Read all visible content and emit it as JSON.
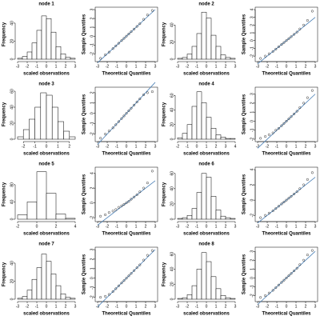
{
  "chart_data": [
    {
      "type": "histogram",
      "title": "node 1",
      "xlabel": "scaled observations",
      "ylabel": "Frequency",
      "bins": [
        -3,
        -2.5,
        -2,
        -1.5,
        -1,
        -0.5,
        0,
        0.5,
        1,
        1.5,
        2,
        2.5,
        3
      ],
      "values": [
        1,
        3,
        8,
        18,
        32,
        48,
        45,
        30,
        14,
        6,
        2,
        1
      ],
      "xlim": [
        -3,
        3
      ],
      "xticks": [
        -3,
        -2,
        -1,
        0,
        1,
        2,
        3
      ],
      "ylim": [
        0,
        55
      ],
      "yticks": [
        0,
        20,
        40
      ]
    },
    {
      "type": "qq",
      "xlabel": "Theoretical Quantiles",
      "ylabel": "Sample Quantiles",
      "x": [
        -2.7,
        -2.2,
        -1.8,
        -1.4,
        -1.1,
        -0.8,
        -0.5,
        -0.25,
        0,
        0.25,
        0.5,
        0.8,
        1.1,
        1.4,
        1.8,
        2.2,
        2.7
      ],
      "values": [
        -2.5,
        -2.1,
        -1.8,
        -1.4,
        -1.1,
        -0.8,
        -0.5,
        -0.25,
        0,
        0.25,
        0.5,
        0.8,
        1.1,
        1.4,
        1.9,
        2.4,
        2.9
      ],
      "qqline": {
        "x": [
          -3,
          3
        ],
        "y": [
          -3,
          3
        ]
      },
      "xlim": [
        -3,
        3
      ],
      "xticks": [
        -3,
        -2,
        -1,
        0,
        1,
        2,
        3
      ],
      "ylim": [
        -2.6,
        3
      ],
      "yticks": [
        -2,
        -1,
        0,
        1,
        2,
        3
      ]
    },
    {
      "type": "histogram",
      "title": "node 2",
      "xlabel": "scaled observations",
      "ylabel": "Frequency",
      "bins": [
        -3,
        -2.5,
        -2,
        -1.5,
        -1,
        -0.5,
        0,
        0.5,
        1,
        1.5,
        2,
        2.5,
        3
      ],
      "values": [
        1,
        2,
        6,
        15,
        30,
        55,
        48,
        28,
        15,
        5,
        2,
        1
      ],
      "xlim": [
        -3,
        3
      ],
      "xticks": [
        -3,
        -2,
        -1,
        0,
        1,
        2,
        3
      ],
      "ylim": [
        0,
        58
      ],
      "yticks": [
        0,
        20,
        40
      ]
    },
    {
      "type": "qq",
      "xlabel": "Theoretical Quantiles",
      "ylabel": "Sample Quantiles",
      "x": [
        -2.7,
        -2.2,
        -1.8,
        -1.4,
        -1.1,
        -0.8,
        -0.5,
        -0.25,
        0,
        0.25,
        0.5,
        0.8,
        1.1,
        1.4,
        1.8,
        2.2,
        2.7
      ],
      "values": [
        -2.3,
        -2,
        -1.7,
        -1.4,
        -1.1,
        -0.8,
        -0.5,
        -0.25,
        0,
        0.25,
        0.5,
        0.8,
        1.1,
        1.5,
        2,
        2.6,
        3.8
      ],
      "qqline": {
        "x": [
          -3,
          3
        ],
        "y": [
          -3,
          3
        ]
      },
      "xlim": [
        -3,
        3
      ],
      "xticks": [
        -3,
        -2,
        -1,
        0,
        1,
        2,
        3
      ],
      "ylim": [
        -2.4,
        4
      ],
      "yticks": [
        -2,
        -1,
        0,
        1,
        2,
        3,
        4
      ]
    },
    {
      "type": "histogram",
      "title": "node 3",
      "xlabel": "scaled observations",
      "ylabel": "Frequency",
      "bins": [
        -2.5,
        -2,
        -1.5,
        -1,
        -0.5,
        0,
        0.5,
        1,
        1.5,
        2,
        2.5
      ],
      "values": [
        3,
        12,
        25,
        40,
        58,
        55,
        40,
        22,
        10,
        3
      ],
      "xlim": [
        -2.5,
        2.5
      ],
      "xticks": [
        -2,
        -1,
        0,
        1,
        2
      ],
      "ylim": [
        0,
        62
      ],
      "yticks": [
        0,
        20,
        40,
        60
      ]
    },
    {
      "type": "qq",
      "xlabel": "Theoretical Quantiles",
      "ylabel": "Sample Quantiles",
      "x": [
        -2.7,
        -2.2,
        -1.8,
        -1.4,
        -1.1,
        -0.8,
        -0.5,
        -0.25,
        0,
        0.25,
        0.5,
        0.8,
        1.1,
        1.4,
        1.8,
        2.2,
        2.7
      ],
      "values": [
        -2.4,
        -2,
        -1.7,
        -1.4,
        -1.1,
        -0.8,
        -0.5,
        -0.25,
        0,
        0.25,
        0.5,
        0.8,
        1.1,
        1.4,
        1.8,
        2,
        2.1
      ],
      "qqline": {
        "x": [
          -3,
          3
        ],
        "y": [
          -3,
          3
        ]
      },
      "xlim": [
        -3,
        3
      ],
      "xticks": [
        -3,
        -2,
        -1,
        0,
        1,
        2,
        3
      ],
      "ylim": [
        -2.5,
        2.3
      ],
      "yticks": [
        -2,
        -1,
        0,
        1,
        2
      ]
    },
    {
      "type": "histogram",
      "title": "node 4",
      "xlabel": "scaled observations",
      "ylabel": "Frequency",
      "bins": [
        -2,
        -1.5,
        -1,
        -0.5,
        0,
        0.5,
        1,
        1.5,
        2,
        2.5,
        3,
        3.5,
        4
      ],
      "values": [
        2,
        8,
        20,
        45,
        65,
        50,
        30,
        15,
        6,
        3,
        1,
        1
      ],
      "xlim": [
        -2,
        4
      ],
      "xticks": [
        -2,
        -1,
        0,
        1,
        2,
        3,
        4
      ],
      "ylim": [
        0,
        68
      ],
      "yticks": [
        0,
        20,
        40,
        60
      ]
    },
    {
      "type": "qq",
      "xlabel": "Theoretical Quantiles",
      "ylabel": "Sample Quantiles",
      "x": [
        -2.7,
        -2.2,
        -1.8,
        -1.4,
        -1.1,
        -0.8,
        -0.5,
        -0.25,
        0,
        0.25,
        0.5,
        0.8,
        1.1,
        1.4,
        1.8,
        2.2,
        2.7
      ],
      "values": [
        -1.9,
        -1.7,
        -1.5,
        -1.3,
        -1,
        -0.8,
        -0.5,
        -0.25,
        0,
        0.25,
        0.5,
        0.8,
        1.1,
        1.5,
        2,
        2.6,
        3.4
      ],
      "qqline": {
        "x": [
          -3,
          3
        ],
        "y": [
          -3,
          3
        ]
      },
      "xlim": [
        -3,
        3
      ],
      "xticks": [
        -3,
        -2,
        -1,
        0,
        1,
        2,
        3
      ],
      "ylim": [
        -2,
        3.5
      ],
      "yticks": [
        -2,
        -1,
        0,
        1,
        2,
        3
      ]
    },
    {
      "type": "histogram",
      "title": "node 5",
      "xlabel": "scaled observations",
      "ylabel": "Frequency",
      "bins": [
        -2,
        -1,
        0,
        1,
        2,
        3,
        4
      ],
      "values": [
        10,
        40,
        110,
        60,
        12,
        2
      ],
      "xlim": [
        -2,
        4
      ],
      "xticks": [
        -2,
        0,
        2,
        4
      ],
      "ylim": [
        0,
        115
      ],
      "yticks": [
        0,
        40,
        80
      ]
    },
    {
      "type": "qq",
      "xlabel": "Theoretical Quantiles",
      "ylabel": "Sample Quantiles",
      "x": [
        -2.7,
        -2.2,
        -1.8,
        -1.4,
        -1.1,
        -0.8,
        -0.5,
        -0.25,
        0,
        0.25,
        0.5,
        0.8,
        1.1,
        1.4,
        1.8,
        2.2,
        2.7
      ],
      "values": [
        -1.8,
        -1.6,
        -1.3,
        -1.1,
        -0.9,
        -0.6,
        -0.4,
        -0.2,
        0,
        0.2,
        0.5,
        0.8,
        1.1,
        1.5,
        2,
        2.7,
        4.3
      ],
      "qqline": {
        "x": [
          -3,
          3
        ],
        "y": [
          -3,
          3
        ]
      },
      "xlim": [
        -3,
        3
      ],
      "xticks": [
        -3,
        -2,
        -1,
        0,
        1,
        2,
        3
      ],
      "ylim": [
        -2.2,
        4.5
      ],
      "yticks": [
        -2,
        0,
        2,
        4
      ]
    },
    {
      "type": "histogram",
      "title": "node 6",
      "xlabel": "scaled observations",
      "ylabel": "Frequency",
      "bins": [
        -3,
        -2.5,
        -2,
        -1.5,
        -1,
        -0.5,
        0,
        0.5,
        1,
        1.5,
        2,
        2.5,
        3
      ],
      "values": [
        1,
        2,
        5,
        14,
        35,
        60,
        55,
        30,
        12,
        4,
        2,
        1
      ],
      "xlim": [
        -3,
        3
      ],
      "xticks": [
        -3,
        -2,
        -1,
        0,
        1,
        2,
        3
      ],
      "ylim": [
        0,
        65
      ],
      "yticks": [
        0,
        20,
        40,
        60
      ]
    },
    {
      "type": "qq",
      "xlabel": "Theoretical Quantiles",
      "ylabel": "Sample Quantiles",
      "x": [
        -2.7,
        -2.2,
        -1.8,
        -1.4,
        -1.1,
        -0.8,
        -0.5,
        -0.25,
        0,
        0.25,
        0.5,
        0.8,
        1.1,
        1.4,
        1.8,
        2.2,
        2.7
      ],
      "values": [
        -2.3,
        -2,
        -1.7,
        -1.4,
        -1.1,
        -0.8,
        -0.5,
        -0.25,
        0,
        0.25,
        0.5,
        0.8,
        1.1,
        1.5,
        2,
        2.7,
        3.6
      ],
      "qqline": {
        "x": [
          -3,
          3
        ],
        "y": [
          -3,
          3
        ]
      },
      "xlim": [
        -3,
        3
      ],
      "xticks": [
        -3,
        -2,
        -1,
        0,
        1,
        2,
        3
      ],
      "ylim": [
        -2.5,
        4
      ],
      "yticks": [
        -2,
        0,
        2,
        4
      ]
    },
    {
      "type": "histogram",
      "title": "node 7",
      "xlabel": "scaled observations",
      "ylabel": "Frequency",
      "bins": [
        -3,
        -2.5,
        -2,
        -1.5,
        -1,
        -0.5,
        0,
        0.5,
        1,
        1.5,
        2,
        2.5,
        3
      ],
      "values": [
        1,
        3,
        10,
        22,
        35,
        50,
        42,
        28,
        15,
        6,
        2,
        1
      ],
      "xlim": [
        -3,
        3
      ],
      "xticks": [
        -3,
        -2,
        -1,
        0,
        1,
        2,
        3
      ],
      "ylim": [
        0,
        55
      ],
      "yticks": [
        0,
        20,
        40
      ]
    },
    {
      "type": "qq",
      "xlabel": "Theoretical Quantiles",
      "ylabel": "Sample Quantiles",
      "x": [
        -2.7,
        -2.2,
        -1.8,
        -1.4,
        -1.1,
        -0.8,
        -0.5,
        -0.25,
        0,
        0.25,
        0.5,
        0.8,
        1.1,
        1.4,
        1.8,
        2.2,
        2.7
      ],
      "values": [
        -2,
        -1.9,
        -1.7,
        -1.4,
        -1.1,
        -0.8,
        -0.5,
        -0.25,
        0,
        0.25,
        0.5,
        0.8,
        1.1,
        1.4,
        1.9,
        2.4,
        2.9
      ],
      "qqline": {
        "x": [
          -3,
          3
        ],
        "y": [
          -3,
          3
        ]
      },
      "xlim": [
        -3,
        3
      ],
      "xticks": [
        -3,
        -2,
        -1,
        0,
        1,
        2,
        3
      ],
      "ylim": [
        -2.2,
        3
      ],
      "yticks": [
        -2,
        -1,
        0,
        1,
        2,
        3
      ]
    },
    {
      "type": "histogram",
      "title": "node 8",
      "xlabel": "scaled observations",
      "ylabel": "Frequency",
      "bins": [
        -3,
        -2.5,
        -2,
        -1.5,
        -1,
        -0.5,
        0,
        0.5,
        1,
        1.5,
        2,
        2.5,
        3
      ],
      "values": [
        1,
        2,
        6,
        18,
        40,
        62,
        50,
        30,
        14,
        5,
        2,
        1
      ],
      "xlim": [
        -3,
        3
      ],
      "xticks": [
        -3,
        -2,
        -1,
        0,
        1,
        2,
        3
      ],
      "ylim": [
        0,
        66
      ],
      "yticks": [
        0,
        20,
        40,
        60
      ]
    },
    {
      "type": "qq",
      "xlabel": "Theoretical Quantiles",
      "ylabel": "Sample Quantiles",
      "x": [
        -2.7,
        -2.2,
        -1.8,
        -1.4,
        -1.1,
        -0.8,
        -0.5,
        -0.25,
        0,
        0.25,
        0.5,
        0.8,
        1.1,
        1.4,
        1.8,
        2.2,
        2.7
      ],
      "values": [
        -2.2,
        -2,
        -1.7,
        -1.4,
        -1.1,
        -0.8,
        -0.5,
        -0.25,
        0,
        0.25,
        0.5,
        0.8,
        1.1,
        1.5,
        2,
        2.6,
        3.1
      ],
      "qqline": {
        "x": [
          -3,
          3
        ],
        "y": [
          -3,
          3
        ]
      },
      "xlim": [
        -3,
        3
      ],
      "xticks": [
        -3,
        -2,
        -1,
        0,
        1,
        2,
        3
      ],
      "ylim": [
        -2.4,
        3.2
      ],
      "yticks": [
        -2,
        -1,
        0,
        1,
        2,
        3
      ]
    }
  ]
}
